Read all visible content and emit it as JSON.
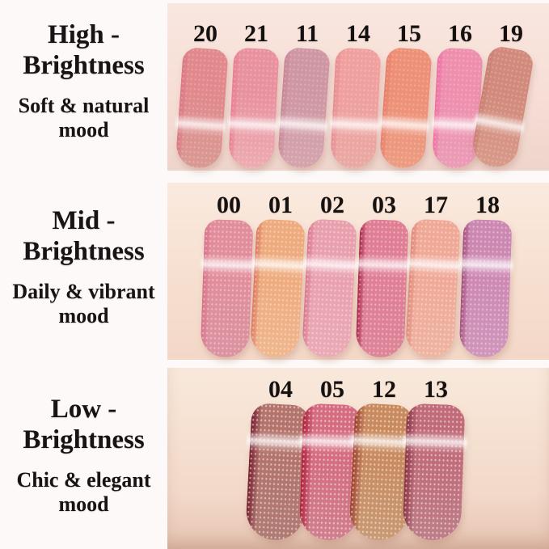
{
  "panels": [
    {
      "key": "high-brightness",
      "heading_line1": "High -",
      "heading_line2": "Brightness",
      "mood_line1": "Soft & natural",
      "mood_line2": "mood",
      "skin_top": "#f9e7df",
      "skin_bottom": "#eed5cc",
      "swatches": [
        {
          "num": "20",
          "top": "#e1898c",
          "bottom": "#d99a93",
          "edge": "#db7784",
          "tilt": 4
        },
        {
          "num": "21",
          "top": "#e9929f",
          "bottom": "#edacb2",
          "edge": "#e87f92",
          "tilt": 3
        },
        {
          "num": "11",
          "top": "#cf97a3",
          "bottom": "#d4a5ad",
          "edge": "#c78797",
          "tilt": 4
        },
        {
          "num": "14",
          "top": "#efa09f",
          "bottom": "#eaa9a3",
          "edge": "#e88d93",
          "tilt": 3
        },
        {
          "num": "15",
          "top": "#ee9077",
          "bottom": "#ec9c82",
          "edge": "#e87e6b",
          "tilt": 4
        },
        {
          "num": "16",
          "top": "#ee8fae",
          "bottom": "#eb9cb6",
          "edge": "#ee6fa3",
          "tilt": 3
        },
        {
          "num": "19",
          "top": "#d28a7c",
          "bottom": "#d89a8a",
          "edge": "#c97f72",
          "tilt": 10
        }
      ]
    },
    {
      "key": "mid-brightness",
      "heading_line1": "Mid -",
      "heading_line2": "Brightness",
      "mood_line1": "Daily & vibrant",
      "mood_line2": "mood",
      "skin_top": "#faeade",
      "skin_bottom": "#f3d8c8",
      "swatches": [
        {
          "num": "00",
          "top": "#e28d9c",
          "bottom": "#db93a1",
          "edge": "#d87489",
          "tilt": 2
        },
        {
          "num": "01",
          "top": "#eeab7d",
          "bottom": "#f0b78d",
          "edge": "#dd7a63",
          "tilt": 3
        },
        {
          "num": "02",
          "top": "#e9a0ae",
          "bottom": "#eaaab6",
          "edge": "#d9798f",
          "tilt": 3
        },
        {
          "num": "03",
          "top": "#e07e95",
          "bottom": "#dd8598",
          "edge": "#ab2a4d",
          "tilt": 2
        },
        {
          "num": "17",
          "top": "#f0a897",
          "bottom": "#efb4a2",
          "edge": "#e08a7a",
          "tilt": 3
        },
        {
          "num": "18",
          "top": "#cd88b2",
          "bottom": "#d096bb",
          "edge": "#a5517f",
          "tilt": 2
        }
      ]
    },
    {
      "key": "low-brightness",
      "heading_line1": "Low -",
      "heading_line2": "Brightness",
      "mood_line1": "Chic & elegant",
      "mood_line2": "mood",
      "skin_top": "#f9e9db",
      "skin_bottom": "#e7c5b3",
      "swatches": [
        {
          "num": "04",
          "top": "#b4746c",
          "bottom": "#b07b74",
          "edge": "#7a2433",
          "tilt": 3
        },
        {
          "num": "05",
          "top": "#d56c80",
          "bottom": "#d07f8e",
          "edge": "#b22440",
          "tilt": 2
        },
        {
          "num": "12",
          "top": "#c98a5e",
          "bottom": "#c99a74",
          "edge": "#a04532",
          "tilt": 3
        },
        {
          "num": "13",
          "top": "#c16b79",
          "bottom": "#bd7e88",
          "edge": "#8e3747",
          "tilt": 2
        }
      ]
    }
  ]
}
